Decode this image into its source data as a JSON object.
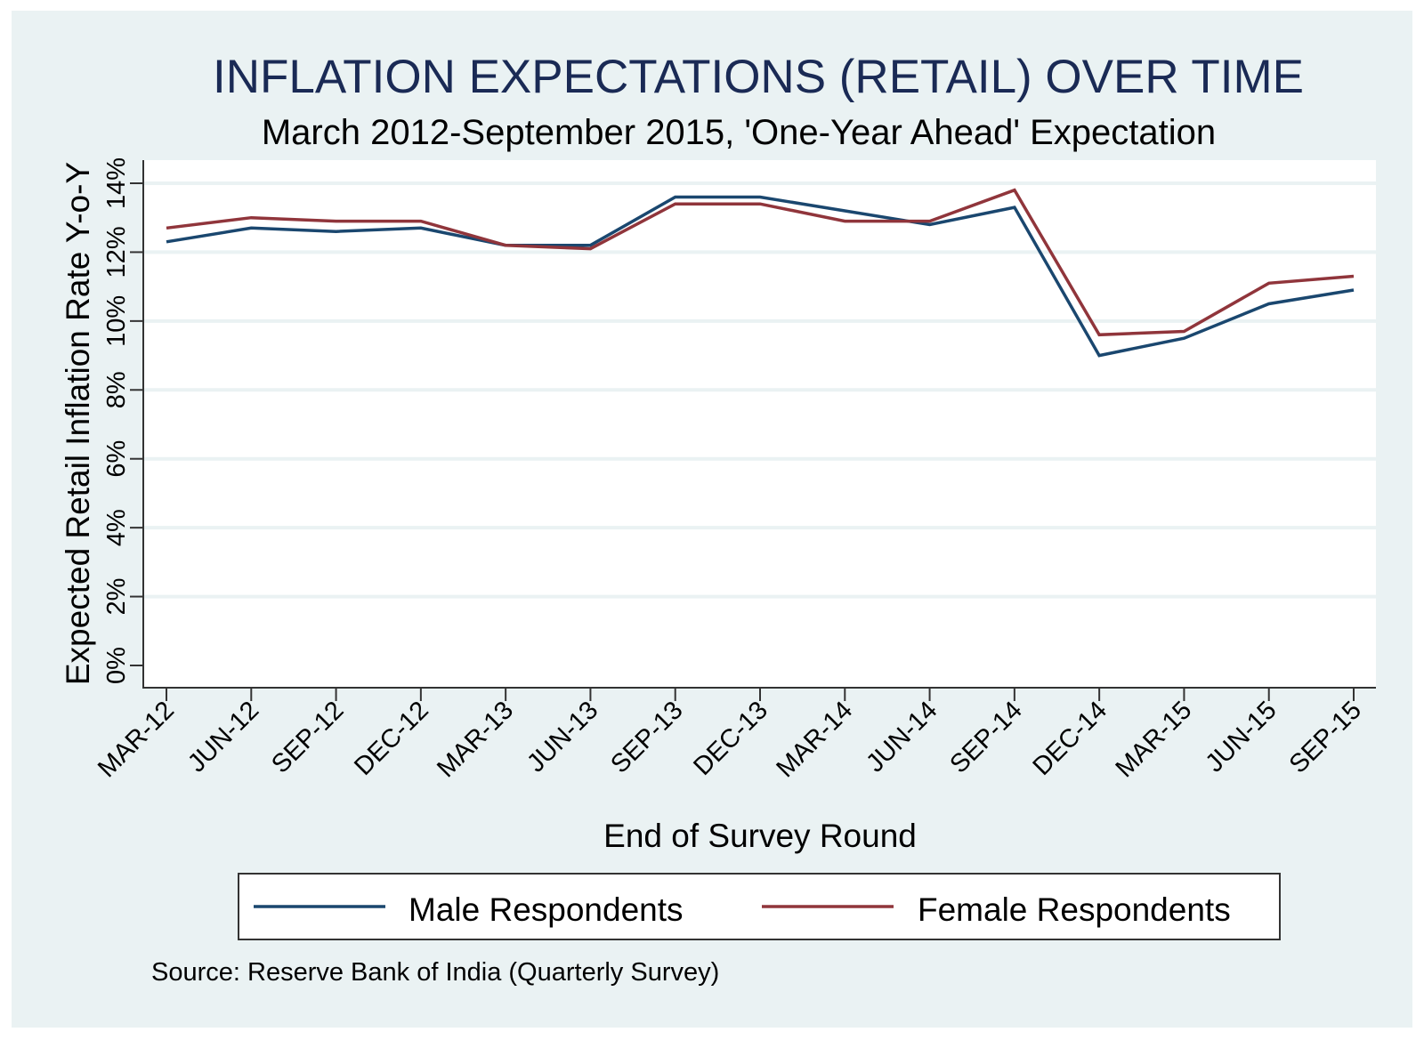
{
  "colors": {
    "outer_background": "#eaf2f3",
    "plot_background": "#ffffff",
    "gridline": "#eaf2f3",
    "title": "#1a2a55",
    "male": "#1a476f",
    "female": "#90353b",
    "axis": "#000000"
  },
  "chart_data": {
    "type": "line",
    "title": "INFLATION EXPECTATIONS (RETAIL) OVER TIME",
    "subtitle": "March 2012-September 2015, 'One-Year Ahead' Expectation",
    "xlabel": "End of Survey Round",
    "ylabel": "Expected Retail Inflation Rate Y-o-Y",
    "categories": [
      "MAR-12",
      "JUN-12",
      "SEP-12",
      "DEC-12",
      "MAR-13",
      "JUN-13",
      "SEP-13",
      "DEC-13",
      "MAR-14",
      "JUN-14",
      "SEP-14",
      "DEC-14",
      "MAR-15",
      "JUN-15",
      "SEP-15"
    ],
    "series": [
      {
        "name": "Male Respondents",
        "color": "#1a476f",
        "values": [
          12.3,
          12.7,
          12.6,
          12.7,
          12.2,
          12.2,
          13.6,
          13.6,
          13.2,
          12.8,
          13.3,
          9.0,
          9.5,
          10.5,
          10.9
        ]
      },
      {
        "name": "Female Respondents",
        "color": "#90353b",
        "values": [
          12.7,
          13.0,
          12.9,
          12.9,
          12.2,
          12.1,
          13.4,
          13.4,
          12.9,
          12.9,
          13.8,
          9.6,
          9.7,
          11.1,
          11.3
        ]
      }
    ],
    "ylim": [
      0,
      14
    ],
    "yticks": [
      0,
      2,
      4,
      6,
      8,
      10,
      12,
      14
    ],
    "ytick_labels": [
      "0%",
      "2%",
      "4%",
      "6%",
      "8%",
      "10%",
      "12%",
      "14%"
    ],
    "y_unit": "percent",
    "grid": true,
    "legend_position": "bottom",
    "note": "Source: Reserve Bank of India (Quarterly Survey)"
  }
}
